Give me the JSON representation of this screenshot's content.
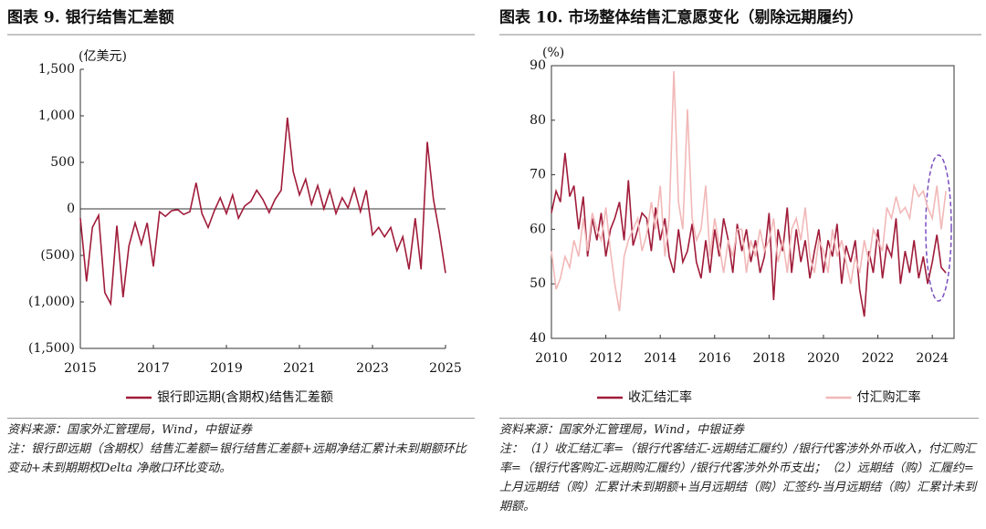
{
  "chart_data": [
    {
      "type": "line",
      "title": "图表 9. 银行结售汇差额",
      "y_label": "(亿美元)",
      "x": [
        2015,
        2015.17,
        2015.33,
        2015.5,
        2015.67,
        2015.83,
        2016,
        2016.17,
        2016.33,
        2016.5,
        2016.67,
        2016.83,
        2017,
        2017.17,
        2017.33,
        2017.5,
        2017.67,
        2017.83,
        2018,
        2018.17,
        2018.33,
        2018.5,
        2018.67,
        2018.83,
        2019,
        2019.17,
        2019.33,
        2019.5,
        2019.67,
        2019.83,
        2020,
        2020.17,
        2020.33,
        2020.5,
        2020.67,
        2020.83,
        2021,
        2021.17,
        2021.33,
        2021.5,
        2021.67,
        2021.83,
        2022,
        2022.17,
        2022.33,
        2022.5,
        2022.67,
        2022.83,
        2023,
        2023.17,
        2023.33,
        2023.5,
        2023.67,
        2023.83,
        2024,
        2024.17,
        2024.33,
        2024.5,
        2024.67,
        2024.83,
        2025
      ],
      "series": [
        {
          "name": "银行即远期(含期权)结售汇差额",
          "color": "#a01c3a",
          "values": [
            -100,
            -780,
            -200,
            -70,
            -900,
            -1020,
            -180,
            -950,
            -400,
            -150,
            -380,
            -150,
            -620,
            -30,
            -80,
            -20,
            -10,
            -60,
            -30,
            280,
            -50,
            -200,
            -20,
            120,
            -50,
            150,
            -100,
            30,
            80,
            200,
            100,
            -40,
            100,
            200,
            980,
            400,
            150,
            320,
            50,
            250,
            0,
            200,
            -50,
            120,
            10,
            220,
            -30,
            200,
            -280,
            -200,
            -300,
            -200,
            -450,
            -300,
            -650,
            -100,
            -650,
            720,
            100,
            -250,
            -690
          ]
        }
      ],
      "xlim": [
        2015,
        2025
      ],
      "xticks": [
        2015,
        2017,
        2019,
        2021,
        2023,
        2025
      ],
      "ylim": [
        -1500,
        1500
      ],
      "yticks": [
        {
          "value": 1500,
          "label": "1,500"
        },
        {
          "value": 1000,
          "label": "1,000"
        },
        500,
        0,
        {
          "value": -500,
          "label": "(500)"
        },
        {
          "value": -1000,
          "label": "(1,000)"
        },
        {
          "value": -1500,
          "label": "(1,500)"
        }
      ],
      "negative_tick_color": "#d40000",
      "legend": "bottom",
      "source": "资料来源：国家外汇管理局，Wind，中银证券",
      "note": "注：银行即远期（含期权）结售汇差额=银行结售汇差额+远期净结汇累计未到期额环比变动+未到期期权Delta 净敞口环比变动。"
    },
    {
      "type": "line",
      "title": "图表 10. 市场整体结售汇意愿变化（剔除远期履约）",
      "y_label": "(%)",
      "x": [
        2010,
        2010.17,
        2010.33,
        2010.5,
        2010.67,
        2010.83,
        2011,
        2011.17,
        2011.33,
        2011.5,
        2011.67,
        2011.83,
        2012,
        2012.17,
        2012.33,
        2012.5,
        2012.67,
        2012.83,
        2013,
        2013.17,
        2013.33,
        2013.5,
        2013.67,
        2013.83,
        2014,
        2014.17,
        2014.33,
        2014.5,
        2014.67,
        2014.83,
        2015,
        2015.17,
        2015.33,
        2015.5,
        2015.67,
        2015.83,
        2016,
        2016.17,
        2016.33,
        2016.5,
        2016.67,
        2016.83,
        2017,
        2017.17,
        2017.33,
        2017.5,
        2017.67,
        2017.83,
        2018,
        2018.17,
        2018.33,
        2018.5,
        2018.67,
        2018.83,
        2019,
        2019.17,
        2019.33,
        2019.5,
        2019.67,
        2019.83,
        2020,
        2020.17,
        2020.33,
        2020.5,
        2020.67,
        2020.83,
        2021,
        2021.17,
        2021.33,
        2021.5,
        2021.67,
        2021.83,
        2022,
        2022.17,
        2022.33,
        2022.5,
        2022.67,
        2022.83,
        2023,
        2023.17,
        2023.33,
        2023.5,
        2023.67,
        2023.83,
        2024,
        2024.17,
        2024.33,
        2024.5
      ],
      "series": [
        {
          "name": "收汇结汇率",
          "color": "#a01c3a",
          "values": [
            63,
            67,
            65,
            74,
            66,
            68,
            60,
            66,
            55,
            62,
            58,
            63,
            55,
            60,
            62,
            65,
            58,
            69,
            57,
            60,
            63,
            62,
            56,
            64,
            58,
            62,
            55,
            52,
            60,
            54,
            56,
            61,
            54,
            51,
            58,
            52,
            60,
            55,
            62,
            58,
            52,
            61,
            56,
            60,
            54,
            58,
            52,
            55,
            63,
            47,
            60,
            56,
            64,
            52,
            60,
            54,
            58,
            51,
            56,
            60,
            52,
            58,
            55,
            61,
            50,
            57,
            54,
            58,
            49,
            44,
            56,
            52,
            60,
            51,
            57,
            55,
            62,
            50,
            56,
            52,
            58,
            51,
            55,
            50,
            54,
            59,
            53,
            52
          ]
        },
        {
          "name": "付汇购汇率",
          "color": "#f2b8b8",
          "values": [
            56,
            49,
            51,
            55,
            53,
            58,
            55,
            62,
            56,
            63,
            60,
            58,
            64,
            56,
            50,
            45,
            55,
            58,
            60,
            62,
            56,
            59,
            65,
            60,
            68,
            55,
            62,
            89,
            65,
            60,
            82,
            62,
            58,
            60,
            68,
            55,
            62,
            57,
            52,
            58,
            55,
            60,
            60,
            52,
            58,
            55,
            60,
            56,
            58,
            62,
            54,
            58,
            52,
            60,
            62,
            58,
            64,
            55,
            52,
            58,
            56,
            52,
            60,
            55,
            58,
            54,
            50,
            55,
            52,
            58,
            54,
            60,
            58,
            56,
            64,
            62,
            66,
            63,
            64,
            62,
            68,
            66,
            67,
            64,
            62,
            68,
            60,
            67
          ]
        }
      ],
      "xlim": [
        2010,
        2024.8
      ],
      "xticks": [
        2010,
        2012,
        2014,
        2016,
        2018,
        2020,
        2022,
        2024
      ],
      "ylim": [
        40,
        90
      ],
      "yticks": [
        40,
        50,
        60,
        70,
        80,
        90
      ],
      "legend": "bottom",
      "source": "资料来源：国家外汇管理局，Wind，中银证券",
      "note": "注：（1）收汇结汇率=（银行代客结汇-远期结汇履约）/银行代客涉外外币收入，付汇购汇率=（银行代客购汇-远期购汇履约）/银行代客涉外外币支出；（2）远期结（购）汇履约=上月远期结（购）汇累计未到期额+当月远期结（购）汇签约-当月远期结（购）汇累计未到期额。"
    }
  ]
}
